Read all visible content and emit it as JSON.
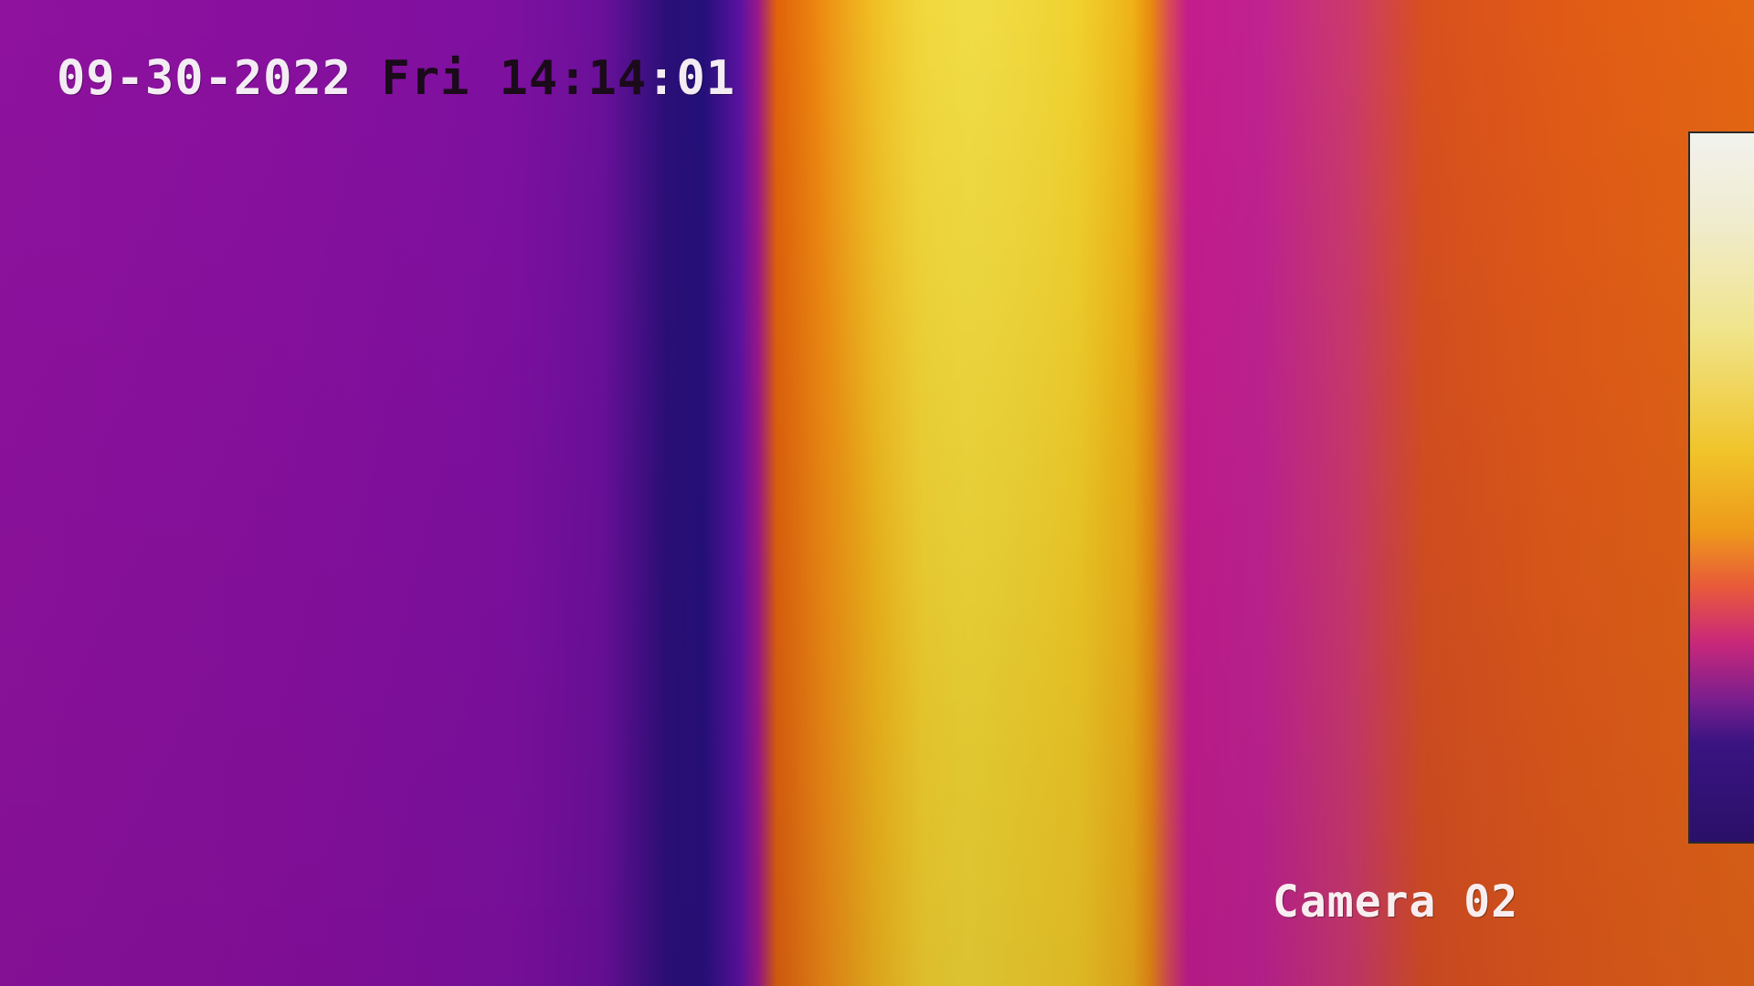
{
  "osd": {
    "date": "09-30-2022",
    "weekday": "Fri",
    "time_prefix": "14:14",
    "time_suffix": ":01",
    "camera_label": "Camera 02"
  },
  "palette": {
    "scale_name": "iron",
    "scale_top_color": "#f2f2ee",
    "scale_bottom_color": "#2a1068"
  }
}
